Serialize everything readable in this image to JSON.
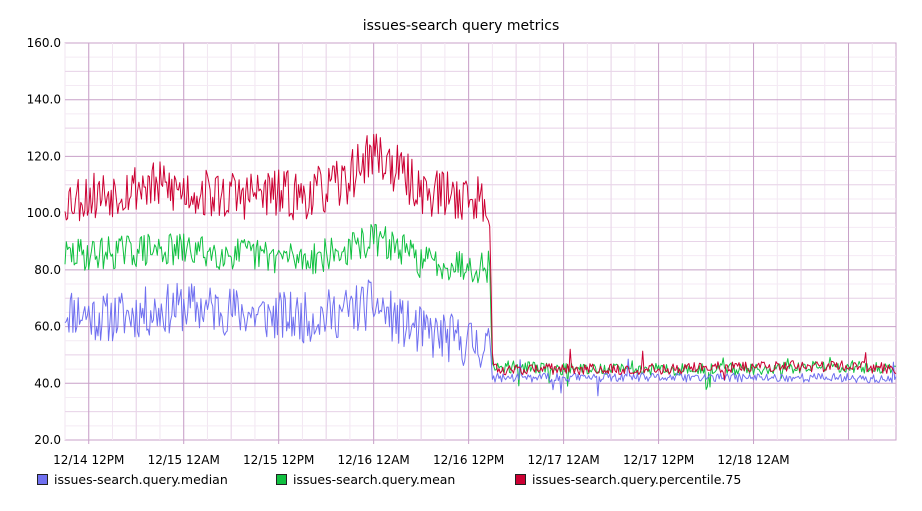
{
  "chart_data": {
    "type": "line",
    "title": "issues-search query metrics",
    "xlabel": "",
    "ylabel": "",
    "ylim": [
      20,
      160
    ],
    "yticks": [
      "20.0",
      "40.0",
      "60.0",
      "80.0",
      "100.0",
      "120.0",
      "140.0",
      "160.0"
    ],
    "x_range": [
      "2016-12-14 09:00",
      "2016-12-18 18:00"
    ],
    "xticks": [
      "12/14 12PM",
      "12/15 12AM",
      "12/15 12PM",
      "12/16 12AM",
      "12/16 12PM",
      "12/17 12AM",
      "12/17 12PM",
      "12/18 12AM"
    ],
    "grid": true,
    "legend_position": "bottom",
    "series": [
      {
        "name": "issues-search.query.median",
        "color": "#7070f0",
        "points": [
          [
            "2016-12-14 09:00",
            66
          ],
          [
            "2016-12-14 14:00",
            63
          ],
          [
            "2016-12-14 19:00",
            65
          ],
          [
            "2016-12-15 00:00",
            67
          ],
          [
            "2016-12-15 05:00",
            66
          ],
          [
            "2016-12-15 10:00",
            64
          ],
          [
            "2016-12-15 15:00",
            63
          ],
          [
            "2016-12-15 20:00",
            65
          ],
          [
            "2016-12-16 00:00",
            68
          ],
          [
            "2016-12-16 03:00",
            62
          ],
          [
            "2016-12-16 06:00",
            58
          ],
          [
            "2016-12-16 11:00",
            55
          ],
          [
            "2016-12-16 14:40",
            53
          ],
          [
            "2016-12-16 15:00",
            42
          ],
          [
            "2016-12-17 00:00",
            42
          ],
          [
            "2016-12-17 12:00",
            42
          ],
          [
            "2016-12-18 00:00",
            42
          ],
          [
            "2016-12-18 12:00",
            42
          ],
          [
            "2016-12-18 18:00",
            41
          ]
        ]
      },
      {
        "name": "issues-search.query.mean",
        "color": "#10c040",
        "points": [
          [
            "2016-12-14 09:00",
            85
          ],
          [
            "2016-12-14 14:00",
            86
          ],
          [
            "2016-12-14 19:00",
            87
          ],
          [
            "2016-12-15 00:00",
            87
          ],
          [
            "2016-12-15 05:00",
            86
          ],
          [
            "2016-12-15 10:00",
            85
          ],
          [
            "2016-12-15 15:00",
            84
          ],
          [
            "2016-12-15 20:00",
            86
          ],
          [
            "2016-12-16 00:00",
            91
          ],
          [
            "2016-12-16 03:00",
            88
          ],
          [
            "2016-12-16 06:00",
            83
          ],
          [
            "2016-12-16 11:00",
            82
          ],
          [
            "2016-12-16 14:40",
            81
          ],
          [
            "2016-12-16 15:00",
            46
          ],
          [
            "2016-12-17 00:00",
            45
          ],
          [
            "2016-12-17 12:00",
            45
          ],
          [
            "2016-12-18 00:00",
            45
          ],
          [
            "2016-12-18 12:00",
            46
          ],
          [
            "2016-12-18 18:00",
            45
          ]
        ]
      },
      {
        "name": "issues-search.query.percentile.75",
        "color": "#cc0033",
        "points": [
          [
            "2016-12-14 09:00",
            105
          ],
          [
            "2016-12-14 14:00",
            107
          ],
          [
            "2016-12-14 19:00",
            110
          ],
          [
            "2016-12-15 00:00",
            108
          ],
          [
            "2016-12-15 05:00",
            106
          ],
          [
            "2016-12-15 10:00",
            107
          ],
          [
            "2016-12-15 15:00",
            106
          ],
          [
            "2016-12-15 20:00",
            110
          ],
          [
            "2016-12-16 00:00",
            122
          ],
          [
            "2016-12-16 03:00",
            115
          ],
          [
            "2016-12-16 06:00",
            108
          ],
          [
            "2016-12-16 11:00",
            106
          ],
          [
            "2016-12-16 14:40",
            104
          ],
          [
            "2016-12-16 15:00",
            45
          ],
          [
            "2016-12-17 00:00",
            45
          ],
          [
            "2016-12-17 12:00",
            45
          ],
          [
            "2016-12-18 00:00",
            46
          ],
          [
            "2016-12-18 12:00",
            46
          ],
          [
            "2016-12-18 18:00",
            45
          ]
        ]
      }
    ]
  }
}
